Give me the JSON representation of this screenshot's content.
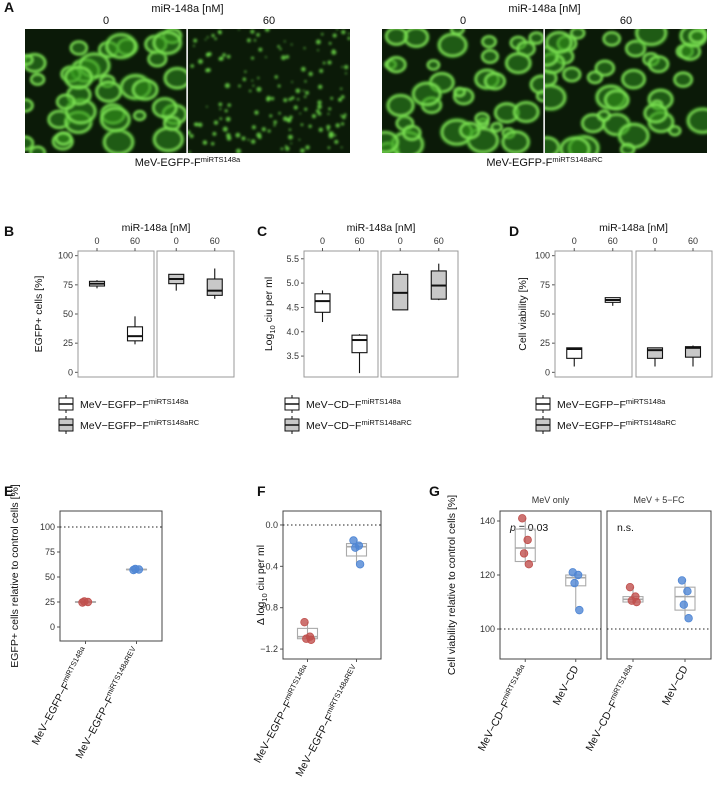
{
  "panel_a": {
    "label": "A",
    "images": [
      {
        "header": "miR-148a [nM]",
        "conditions": [
          "0",
          "60"
        ],
        "caption": "MeV-EGFP-F",
        "caption_sup": "miRTS148a"
      },
      {
        "header": "miR-148a [nM]",
        "conditions": [
          "0",
          "60"
        ],
        "caption": "MeV-EGFP-F",
        "caption_sup": "miRTS148aRC"
      }
    ]
  },
  "chart_data": [
    {
      "type": "box",
      "label": "B",
      "top_title": "miR-148a [nM]",
      "categories": [
        "0",
        "60"
      ],
      "ylabel": "EGFP+ cells [%]",
      "ylim": [
        -4,
        104
      ],
      "yticks": [
        0,
        25,
        50,
        75,
        100
      ],
      "series": [
        {
          "name": "MeV−EGFP−F",
          "name_sup": "miRTS148a",
          "color": "#ffffff",
          "boxes": [
            [
              72,
              74,
              76,
              78,
              79
            ],
            [
              24,
              27,
              31,
              39,
              48
            ]
          ]
        },
        {
          "name": "MeV−EGFP−F",
          "name_sup": "miRTS148aRC",
          "color": "#c8c8c8",
          "boxes": [
            [
              70,
              76,
              80,
              84,
              84
            ],
            [
              63,
              66,
              70,
              80,
              89
            ]
          ]
        }
      ]
    },
    {
      "type": "box",
      "label": "C",
      "top_title": "miR-148a [nM]",
      "categories": [
        "0",
        "60"
      ],
      "ylabel": {
        "text": "Log",
        "sub": "10",
        "tail": " ciu per ml"
      },
      "ylim": [
        3.07,
        5.66
      ],
      "yticks": [
        3.5,
        {
          "value": 4,
          "label": "4.0"
        },
        4.5,
        {
          "value": 5,
          "label": "5.0"
        },
        5.5
      ],
      "series": [
        {
          "name": "MeV−CD−F",
          "name_sup": "miRTS148a",
          "color": "#ffffff",
          "boxes": [
            [
              4.2,
              4.4,
              4.63,
              4.78,
              4.85
            ],
            [
              3.15,
              3.57,
              3.83,
              3.93,
              3.95
            ]
          ]
        },
        {
          "name": "MeV−CD−F",
          "name_sup": "miRTS148aRC",
          "color": "#c8c8c8",
          "boxes": [
            [
              4.45,
              4.45,
              4.8,
              5.18,
              5.25
            ],
            [
              4.65,
              4.67,
              4.95,
              5.25,
              5.4
            ]
          ]
        }
      ]
    },
    {
      "type": "box",
      "label": "D",
      "top_title": "miR-148a [nM]",
      "categories": [
        "0",
        "60"
      ],
      "ylabel": "Cell viability [%]",
      "ylim": [
        -4,
        104
      ],
      "yticks": [
        0,
        25,
        50,
        75,
        100
      ],
      "series": [
        {
          "name": "MeV−EGFP−F",
          "name_sup": "miRTS148a",
          "color": "#ffffff",
          "boxes": [
            [
              5,
              12,
              20,
              21,
              21
            ],
            [
              57,
              60,
              62,
              64,
              64
            ]
          ]
        },
        {
          "name": "MeV−EGFP−F",
          "name_sup": "miRTS148aRC",
          "color": "#c8c8c8",
          "boxes": [
            [
              5,
              12,
              19,
              21,
              21
            ],
            [
              5,
              13,
              21,
              22,
              23
            ]
          ]
        }
      ]
    },
    {
      "type": "dotbox",
      "label": "E",
      "ylabel": "EGFP+ cells relative to control cells [%]",
      "categories": [
        "MeV−EGFP−F",
        "MeV−EGFP−F"
      ],
      "category_sups": [
        "miRTS148a",
        "miRTS148aREV"
      ],
      "ylim": [
        -14,
        116
      ],
      "yticks": [
        0,
        25,
        50,
        75,
        100
      ],
      "hline": 100,
      "series": [
        {
          "color": "#c0504d",
          "values": [
            24.5,
            25,
            25.5
          ],
          "box": [
            24.5,
            24.7,
            25,
            25.3,
            25.5
          ]
        },
        {
          "color": "#4f86d4",
          "values": [
            57,
            57.5,
            58
          ],
          "box": [
            57,
            57.2,
            57.5,
            57.8,
            58
          ]
        }
      ]
    },
    {
      "type": "dotbox",
      "label": "F",
      "ylabel": {
        "text": "Δ log",
        "sub": "10",
        "tail": " ciu per ml"
      },
      "categories": [
        "MeV−EGFP−F",
        "MeV−EGFP−F"
      ],
      "category_sups": [
        "miRTS148a",
        "miRTS148aREV"
      ],
      "ylim": [
        -1.296,
        0.135
      ],
      "yticks": [
        {
          "value": 0,
          "label": "0.0"
        },
        {
          "value": -0.4,
          "label": "−0.4"
        },
        {
          "value": -0.8,
          "label": "−0.8"
        },
        {
          "value": -1.2,
          "label": "−1.2"
        }
      ],
      "hline": 0,
      "series": [
        {
          "color": "#c0504d",
          "values": [
            -0.94,
            -1.08,
            -1.1,
            -1.11
          ],
          "box": [
            -1.11,
            -1.1,
            -1.08,
            -1.0,
            -0.94
          ]
        },
        {
          "color": "#4f86d4",
          "values": [
            -0.15,
            -0.2,
            -0.22,
            -0.38
          ],
          "box": [
            -0.38,
            -0.3,
            -0.21,
            -0.18,
            -0.15
          ]
        }
      ]
    },
    {
      "type": "dotbox",
      "label": "G",
      "ylabel": "Cell viability relative to control cells [%]",
      "categories": [
        "MeV−CD−F",
        "MeV−CD"
      ],
      "category_sups": [
        "miRTS148a",
        null
      ],
      "ylim": [
        88.9,
        143.7
      ],
      "yticks": [
        100,
        120,
        140
      ],
      "hline": 100,
      "facets": [
        {
          "strip": "MeV only",
          "annotation": {
            "italic": "p",
            "text": " = 0.03"
          },
          "series": [
            {
              "color": "#c0504d",
              "values": [
                141,
                133,
                128,
                124
              ],
              "box": [
                124,
                125,
                130,
                137,
                141
              ]
            },
            {
              "color": "#4f86d4",
              "values": [
                121,
                120,
                117,
                107
              ],
              "box": [
                107,
                116,
                119,
                120,
                121
              ]
            }
          ]
        },
        {
          "strip": "MeV + 5−FC",
          "annotation": {
            "text": "n.s."
          },
          "series": [
            {
              "color": "#c0504d",
              "values": [
                115.5,
                112,
                110.5,
                110
              ],
              "box": [
                110,
                110,
                111,
                112,
                115.5
              ]
            },
            {
              "color": "#4f86d4",
              "values": [
                118,
                114,
                109,
                104
              ],
              "box": [
                104,
                107,
                112,
                115.5,
                118
              ]
            }
          ]
        }
      ]
    }
  ]
}
